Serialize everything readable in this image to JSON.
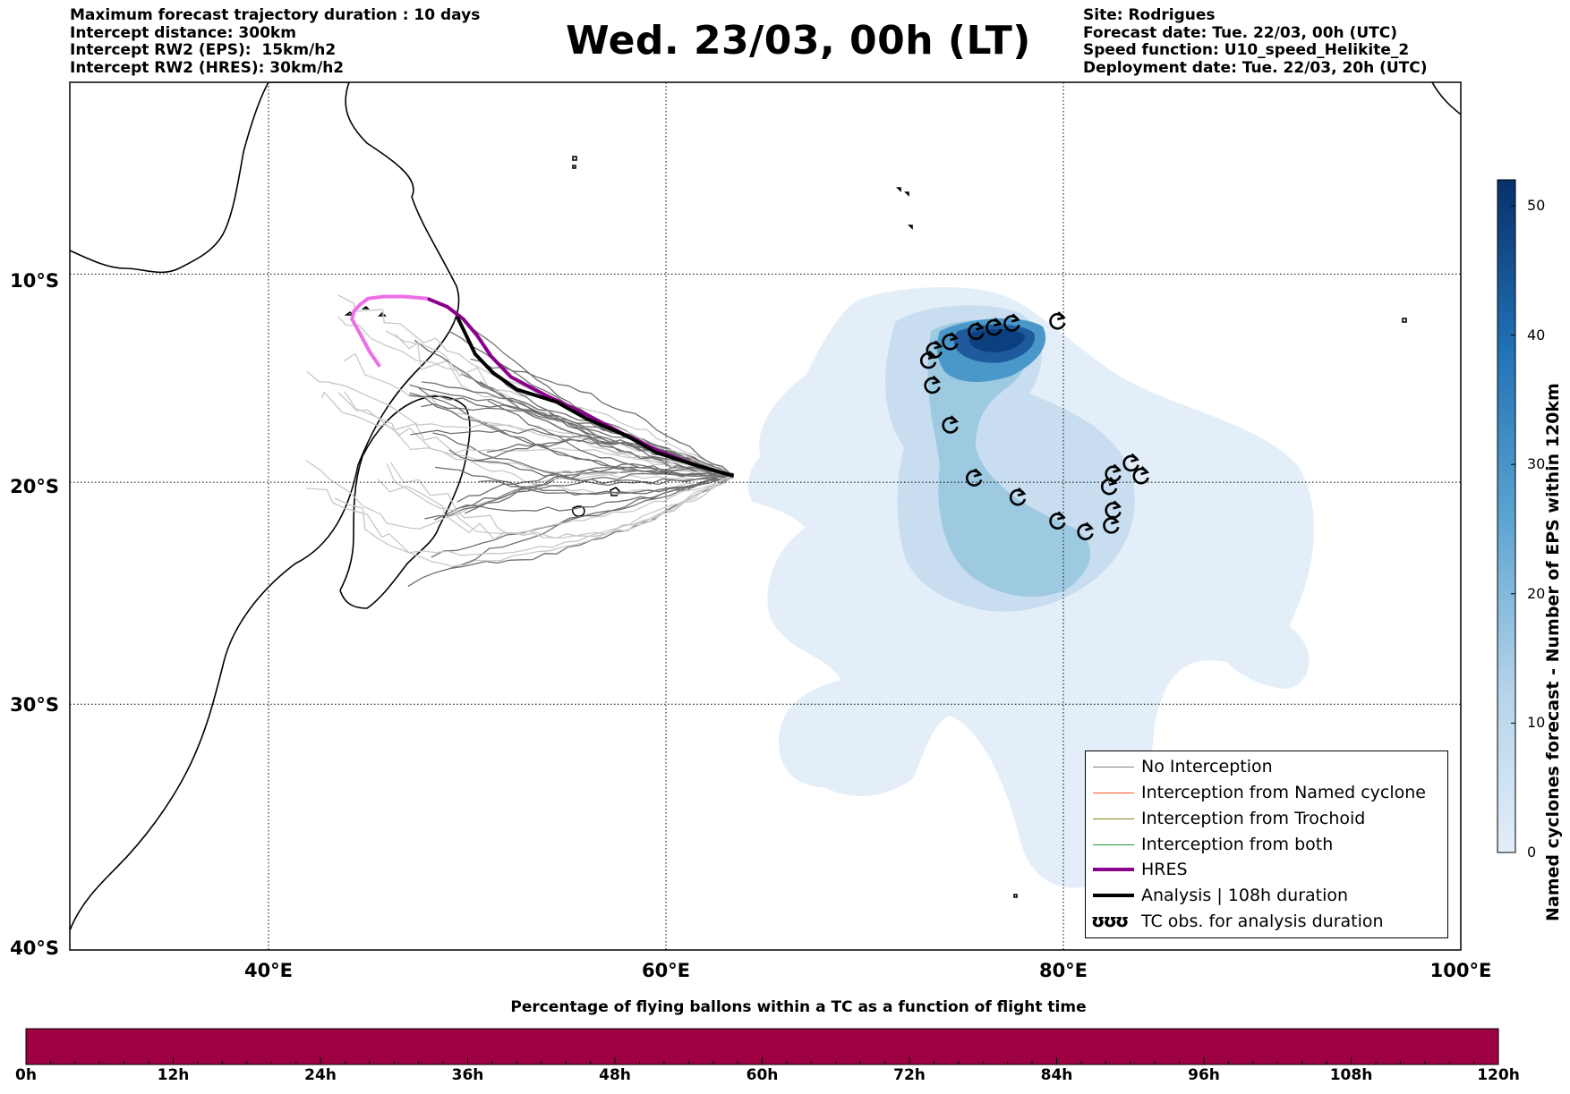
{
  "title": "Wed. 23/03, 00h (LT)",
  "header_left": [
    "Maximum forecast trajectory duration : 10 days",
    "Intercept distance: 300km",
    "Intercept RW2 (EPS):  15km/h2",
    "Intercept RW2 (HRES): 30km/h2"
  ],
  "header_right": [
    "Site: Rodrigues",
    "Forecast date: Tue. 22/03, 00h (UTC)",
    "Speed function: U10_speed_Helikite_2",
    "Deployment date: Tue. 22/03, 20h (UTC)"
  ],
  "map": {
    "lon_range": [
      30,
      100
    ],
    "lat_range": [
      -40,
      -0.5
    ],
    "lon_ticks": [
      {
        "value": 40,
        "label": "40°E"
      },
      {
        "value": 60,
        "label": "60°E"
      },
      {
        "value": 80,
        "label": "80°E"
      },
      {
        "value": 100,
        "label": "100°E"
      }
    ],
    "lat_ticks": [
      {
        "value": -10,
        "label": "10°S"
      },
      {
        "value": -20,
        "label": "20°S"
      },
      {
        "value": -30,
        "label": "30°S"
      },
      {
        "value": -40,
        "label": "40°S"
      }
    ],
    "grid": true,
    "deployment_point": {
      "lon": 63.4,
      "lat": -19.7
    }
  },
  "legend": {
    "items": [
      {
        "label": "No Interception",
        "color": "#808080",
        "kind": "line-thin"
      },
      {
        "label": "Interception from Named cyclone",
        "color": "#ff5a1e",
        "kind": "line-thin"
      },
      {
        "label": "Interception from Trochoid",
        "color": "#8c7d14",
        "kind": "line-thin"
      },
      {
        "label": "Interception from both",
        "color": "#1e9632",
        "kind": "line-thin"
      },
      {
        "label": "HRES",
        "color": "#8b008b",
        "kind": "line-thick"
      },
      {
        "label": "Analysis | 108h duration",
        "color": "#000000",
        "kind": "line-thick"
      },
      {
        "label": "TC obs. for analysis duration",
        "color": "#000000",
        "kind": "glyph"
      }
    ],
    "glyph": "ʊʊʊ"
  },
  "colorbar": {
    "title": "Named cyclones forecast - Number of EPS within 120km",
    "min": 0,
    "max": 52,
    "ticks": [
      {
        "value": 0,
        "label": "0"
      },
      {
        "value": 10,
        "label": "10"
      },
      {
        "value": 20,
        "label": "20"
      },
      {
        "value": 30,
        "label": "30"
      },
      {
        "value": 40,
        "label": "40"
      },
      {
        "value": 50,
        "label": "50"
      }
    ],
    "color_low": "#e3eef9",
    "color_high": "#08306b"
  },
  "progress_bar": {
    "title": "Percentage of flying ballons within a TC as a function of flight time",
    "color": "#9e0142",
    "ticks": [
      {
        "value": 0,
        "label": "0h"
      },
      {
        "value": 12,
        "label": "12h"
      },
      {
        "value": 24,
        "label": "24h"
      },
      {
        "value": 36,
        "label": "36h"
      },
      {
        "value": 48,
        "label": "48h"
      },
      {
        "value": 60,
        "label": "60h"
      },
      {
        "value": 72,
        "label": "72h"
      },
      {
        "value": 84,
        "label": "84h"
      },
      {
        "value": 96,
        "label": "96h"
      },
      {
        "value": 108,
        "label": "108h"
      },
      {
        "value": 120,
        "label": "120h"
      }
    ]
  },
  "tc_observations": [
    {
      "lon": 79.7,
      "lat": -12.3
    },
    {
      "lon": 77.4,
      "lat": -12.4
    },
    {
      "lon": 76.5,
      "lat": -12.6
    },
    {
      "lon": 75.6,
      "lat": -12.8
    },
    {
      "lon": 74.3,
      "lat": -13.3
    },
    {
      "lon": 73.5,
      "lat": -13.7
    },
    {
      "lon": 73.2,
      "lat": -14.2
    },
    {
      "lon": 73.4,
      "lat": -15.4
    },
    {
      "lon": 74.3,
      "lat": -17.3
    },
    {
      "lon": 75.5,
      "lat": -19.8
    },
    {
      "lon": 77.7,
      "lat": -20.7
    },
    {
      "lon": 79.7,
      "lat": -21.8
    },
    {
      "lon": 81.1,
      "lat": -22.3
    },
    {
      "lon": 82.4,
      "lat": -22.0
    },
    {
      "lon": 82.5,
      "lat": -21.3
    },
    {
      "lon": 82.3,
      "lat": -20.2
    },
    {
      "lon": 82.5,
      "lat": -19.6
    },
    {
      "lon": 83.4,
      "lat": -19.1
    },
    {
      "lon": 83.9,
      "lat": -19.7
    }
  ],
  "analysis_track": [
    [
      63.4,
      -19.7
    ],
    [
      61.5,
      -19.2
    ],
    [
      59.5,
      -18.6
    ],
    [
      58.0,
      -17.8
    ],
    [
      56.0,
      -17.0
    ],
    [
      54.5,
      -16.2
    ],
    [
      52.5,
      -15.6
    ],
    [
      51.3,
      -14.8
    ],
    [
      50.4,
      -13.9
    ],
    [
      49.9,
      -12.9
    ],
    [
      49.5,
      -12.1
    ]
  ],
  "hres_track": [
    [
      63.4,
      -19.7
    ],
    [
      61.5,
      -19.2
    ],
    [
      59.8,
      -18.6
    ],
    [
      57.8,
      -17.7
    ],
    [
      56.0,
      -16.8
    ],
    [
      54.0,
      -15.9
    ],
    [
      52.2,
      -15.0
    ],
    [
      51.2,
      -14.0
    ],
    [
      50.5,
      -13.0
    ],
    [
      49.8,
      -12.2
    ],
    [
      49.0,
      -11.6
    ],
    [
      48.0,
      -11.2
    ],
    [
      46.8,
      -11.1
    ],
    [
      45.8,
      -11.1
    ],
    [
      45.0,
      -11.2
    ],
    [
      44.6,
      -11.5
    ],
    [
      44.3,
      -11.8
    ],
    [
      44.2,
      -12.2
    ],
    [
      44.6,
      -12.9
    ],
    [
      45.1,
      -13.8
    ],
    [
      45.6,
      -14.5
    ]
  ]
}
